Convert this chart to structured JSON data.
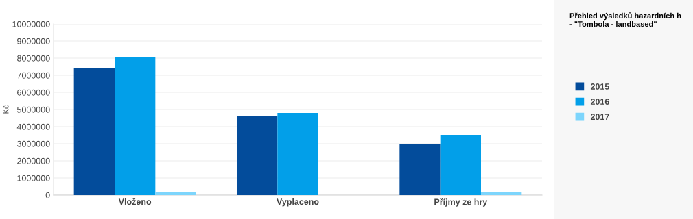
{
  "chart_data": {
    "type": "bar",
    "title": "Přehled výsledků hazardních h\n- \"Tombola - landbased\"",
    "ylabel": "Kč",
    "categories": [
      "Vloženo",
      "Vyplaceno",
      "Příjmy ze hry"
    ],
    "series": [
      {
        "name": "2015",
        "color": "#034c9b",
        "values": [
          7400000,
          4640000,
          2960000
        ]
      },
      {
        "name": "2016",
        "color": "#029fe9",
        "values": [
          8040000,
          4800000,
          3520000
        ]
      },
      {
        "name": "2017",
        "color": "#7dd5fc",
        "values": [
          200000,
          null,
          160000
        ]
      }
    ],
    "ylim": [
      0,
      10000000
    ],
    "yticks": [
      0,
      1000000,
      2000000,
      3000000,
      4000000,
      5000000,
      6000000,
      7000000,
      8000000,
      9000000,
      10000000
    ],
    "grid": "y",
    "legend": "right"
  }
}
